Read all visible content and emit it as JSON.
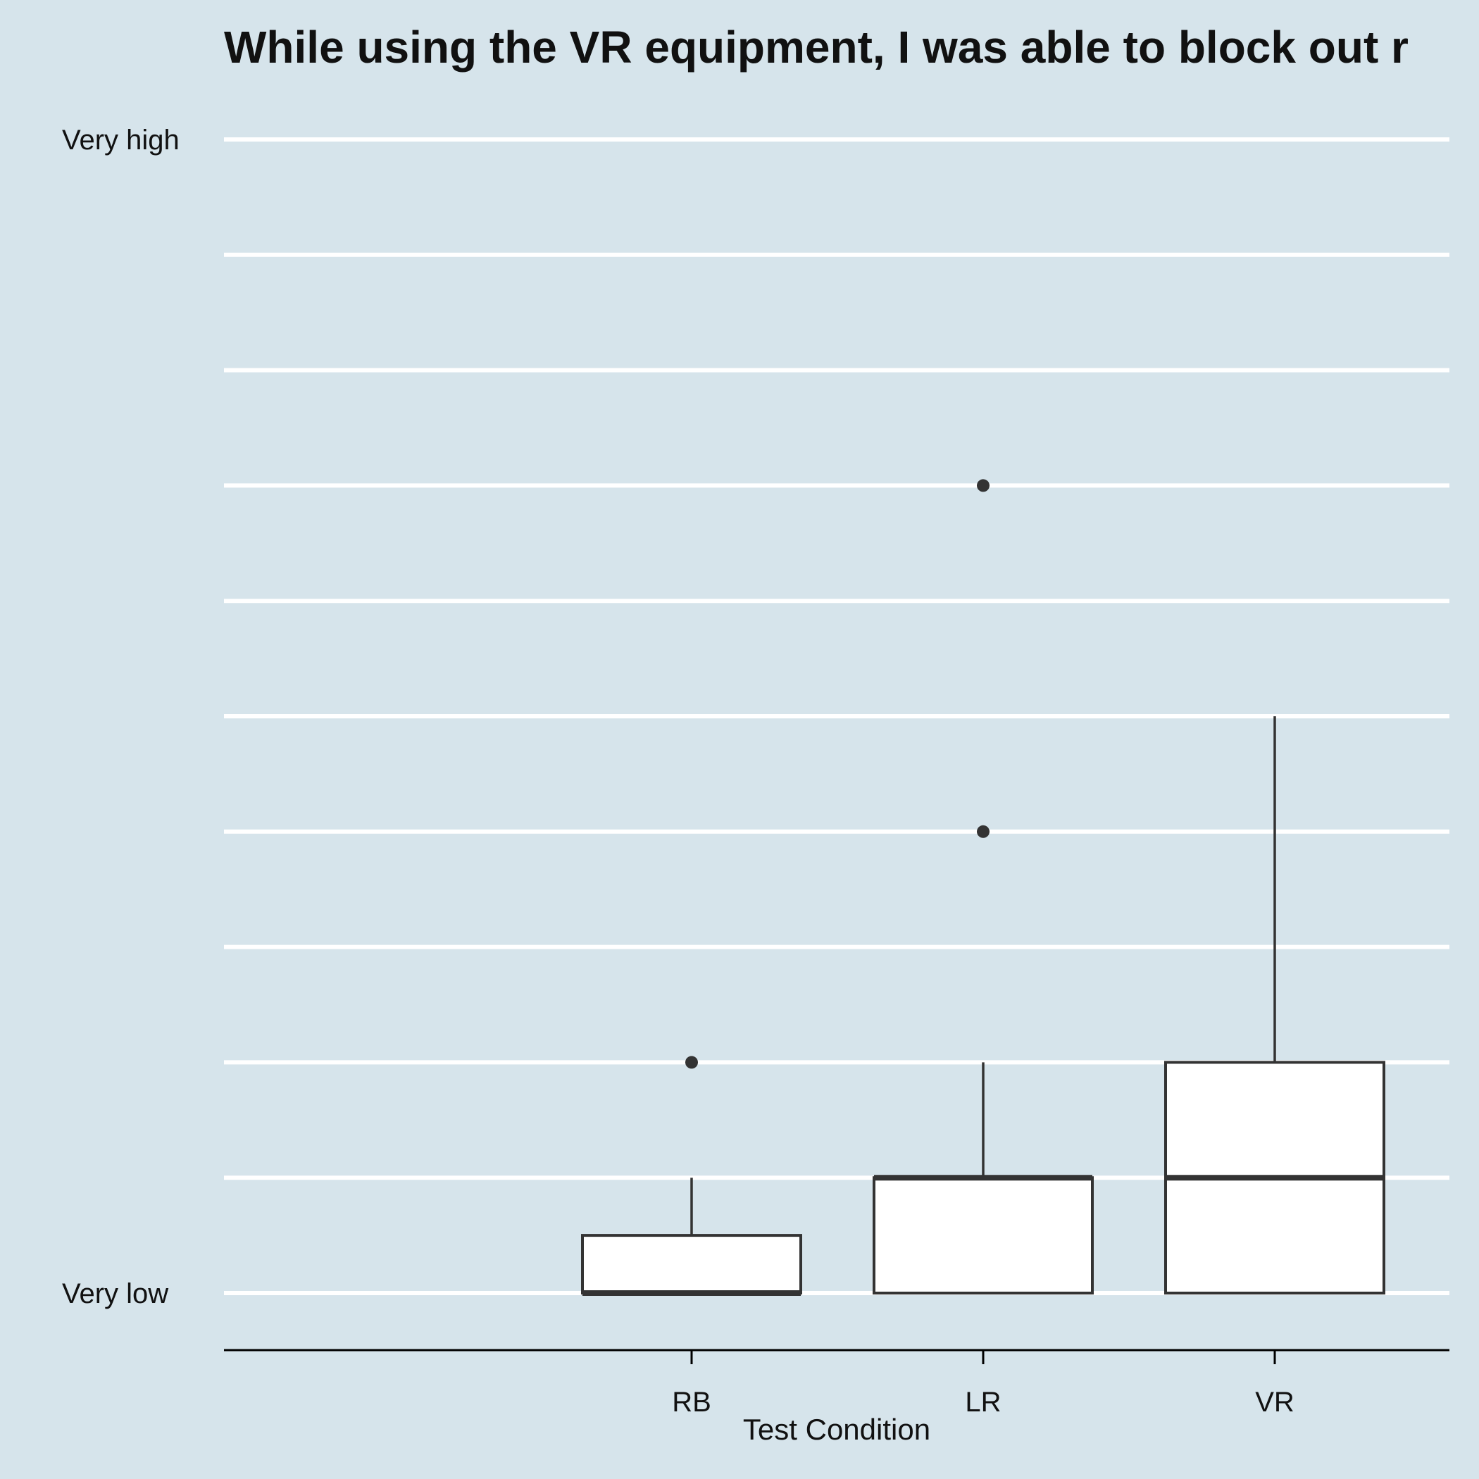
{
  "chart_data": {
    "type": "boxplot",
    "title": "While using the VR equipment, I was able to block out r",
    "xlabel": "Test Condition",
    "ylabel": "",
    "categories": [
      "RB",
      "LR",
      "VR"
    ],
    "y_tick_labels": [
      {
        "value": 0,
        "label": "Very low"
      },
      {
        "value": 10,
        "label": "Very high"
      }
    ],
    "ylim": [
      0,
      10
    ],
    "gridlines": [
      0,
      1,
      2,
      3,
      4,
      5,
      6,
      7,
      8,
      9,
      10
    ],
    "boxes": [
      {
        "category": "RB",
        "min": 0,
        "q1": 0,
        "median": 0,
        "q3": 0.5,
        "max": 1,
        "outliers": [
          2
        ]
      },
      {
        "category": "LR",
        "min": 0,
        "q1": 0,
        "median": 1,
        "q3": 1,
        "max": 2,
        "outliers": [
          4,
          7
        ]
      },
      {
        "category": "VR",
        "min": 0,
        "q1": 0,
        "median": 1,
        "q3": 2,
        "max": 5,
        "outliers": []
      }
    ],
    "grid": true,
    "colors": {
      "background": "#d6e4eb",
      "gridline": "#ffffff",
      "box_fill": "#ffffff",
      "box_stroke": "#333333",
      "outlier": "#333333",
      "axis": "#000000"
    }
  }
}
